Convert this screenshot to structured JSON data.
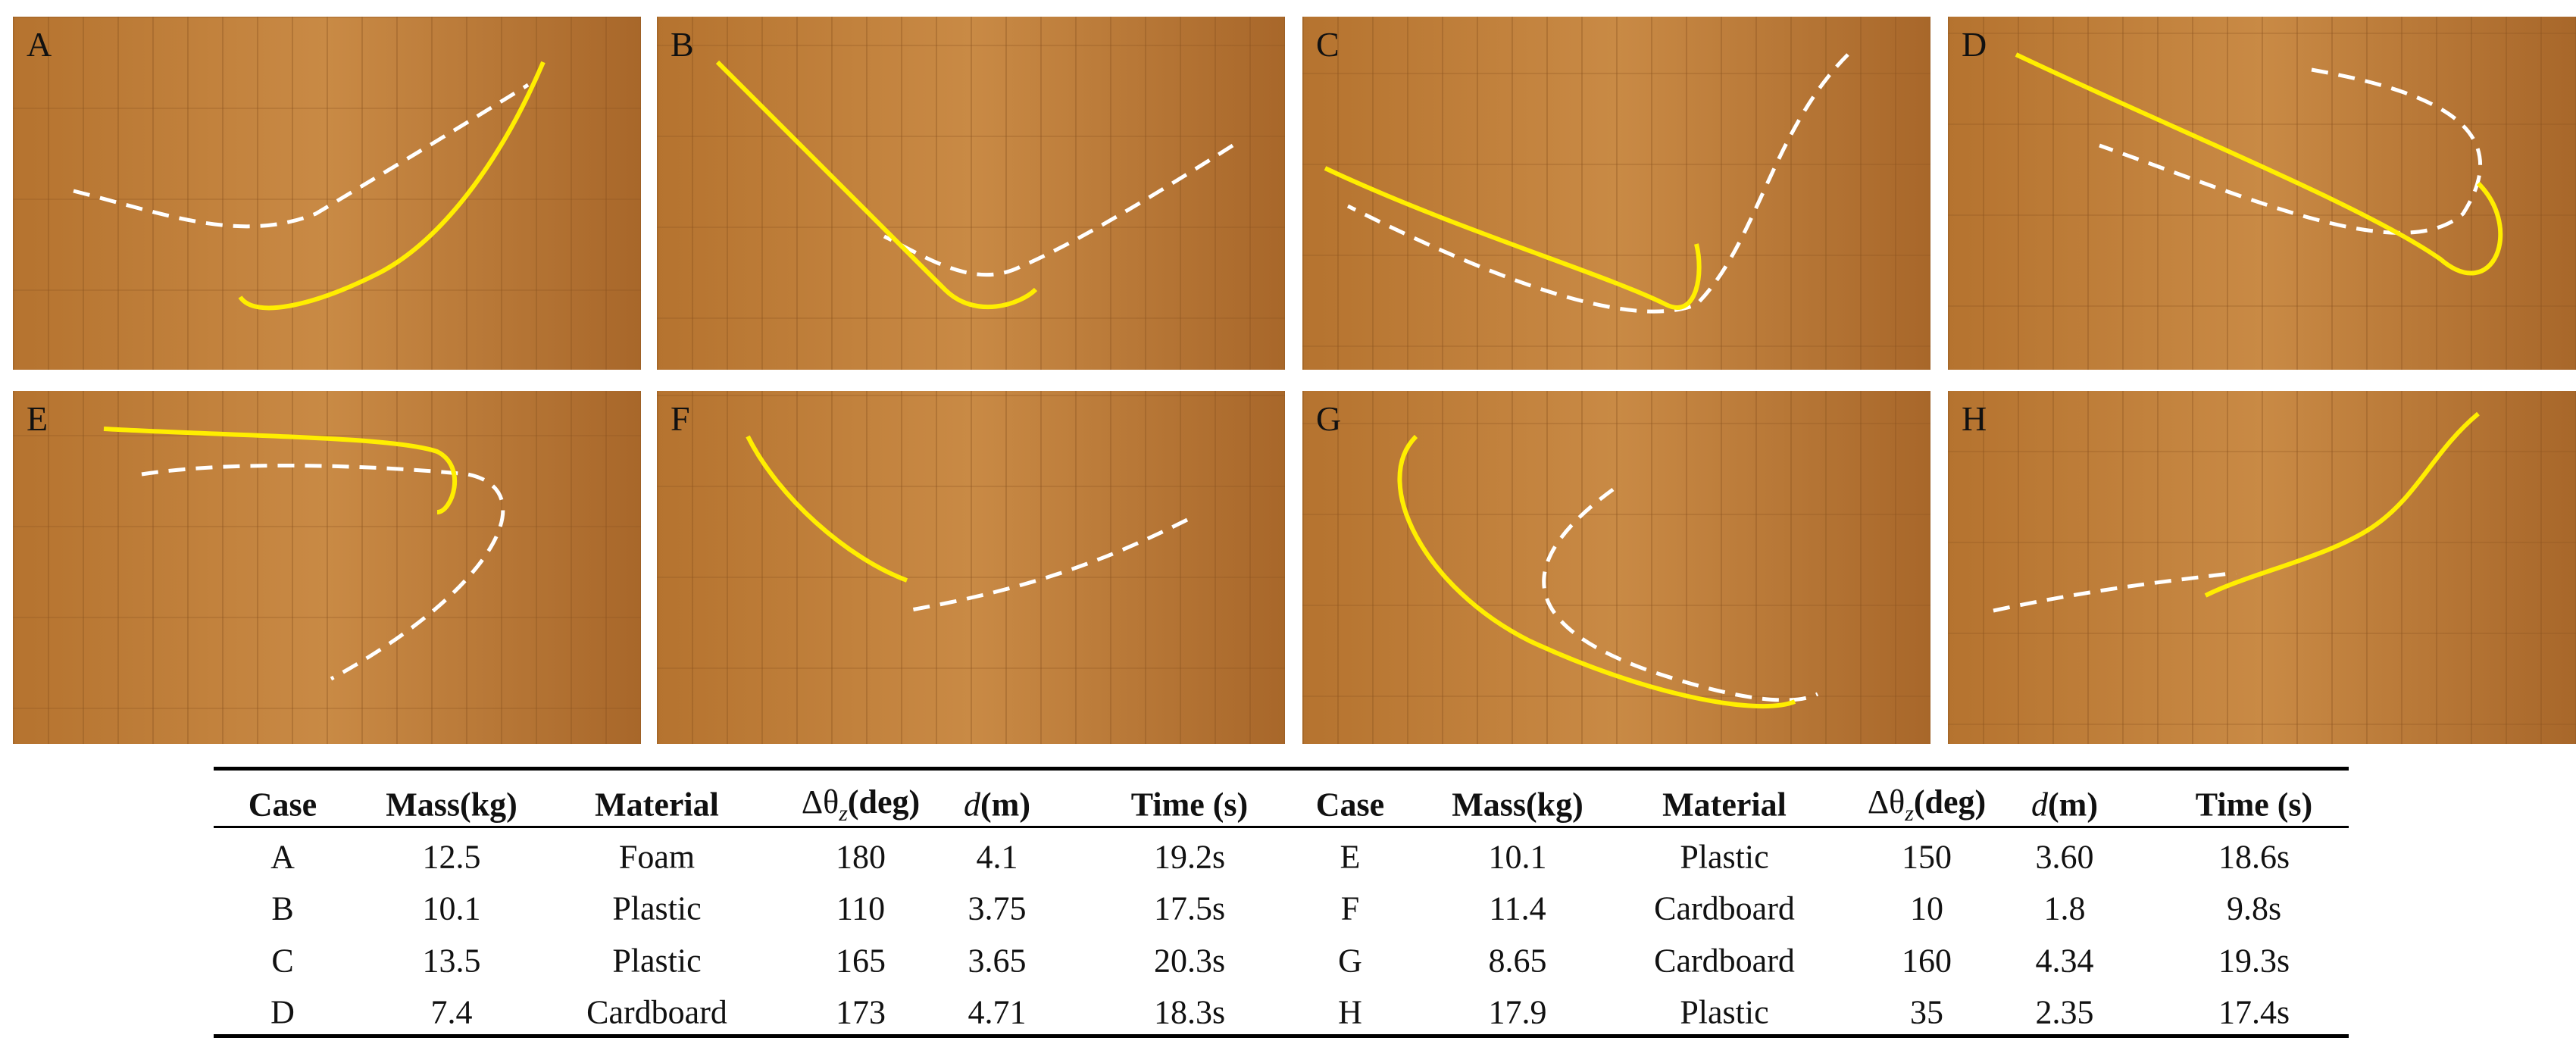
{
  "panels": [
    {
      "label": "A"
    },
    {
      "label": "B"
    },
    {
      "label": "C"
    },
    {
      "label": "D"
    },
    {
      "label": "E"
    },
    {
      "label": "F"
    },
    {
      "label": "G"
    },
    {
      "label": "H"
    }
  ],
  "table": {
    "header": [
      "Case",
      "Mass(kg)",
      "Material",
      {
        "symbol": "Δθ",
        "sub": "z",
        "unit": "(deg)"
      },
      {
        "symbol": "d",
        "unit": "(m)"
      },
      "Time (s)",
      "Case",
      "Mass(kg)",
      "Material",
      {
        "symbol": "Δθ",
        "sub": "z",
        "unit": "(deg)"
      },
      {
        "symbol": "d",
        "unit": "(m)"
      },
      "Time (s)"
    ],
    "rows": [
      [
        "A",
        "12.5",
        "Foam",
        "180",
        "4.1",
        "19.2s",
        "E",
        "10.1",
        "Plastic",
        "150",
        "3.60",
        "18.6s"
      ],
      [
        "B",
        "10.1",
        "Plastic",
        "110",
        "3.75",
        "17.5s",
        "F",
        "11.4",
        "Cardboard",
        "10",
        "1.8",
        "9.8s"
      ],
      [
        "C",
        "13.5",
        "Plastic",
        "165",
        "3.65",
        "20.3s",
        "G",
        "8.65",
        "Cardboard",
        "160",
        "4.34",
        "19.3s"
      ],
      [
        "D",
        "7.4",
        "Cardboard",
        "173",
        "4.71",
        "18.3s",
        "H",
        "17.9",
        "Plastic",
        "35",
        "2.35",
        "17.4s"
      ]
    ]
  }
}
